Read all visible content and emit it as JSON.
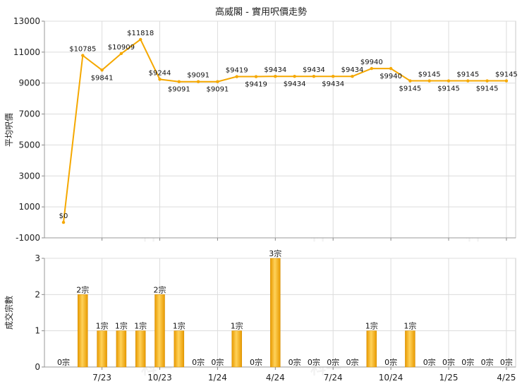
{
  "chart_data": [
    {
      "type": "line",
      "title": "高威閣 - 實用呎價走勢",
      "ylabel": "平均呎價",
      "ylim": [
        -1000,
        13000
      ],
      "yticks": [
        -1000,
        1000,
        3000,
        5000,
        7000,
        9000,
        11000,
        13000
      ],
      "grid": true,
      "x_tick_labels": [
        "7/23",
        "10/23",
        "1/24",
        "4/24",
        "7/24",
        "10/24",
        "1/25",
        "4/25"
      ],
      "x_tick_index": [
        2,
        5,
        8,
        11,
        14,
        17,
        20,
        23
      ],
      "series": [
        {
          "color": "#f5a800",
          "values": [
            0,
            10785,
            9841,
            10909,
            11818,
            9244,
            9091,
            9091,
            9091,
            9419,
            9419,
            9434,
            9434,
            9434,
            9434,
            9434,
            9940,
            9940,
            9145,
            9145,
            9145,
            9145,
            9145,
            9145
          ],
          "labels": [
            "$0",
            "$10785",
            "$9841",
            "$10909",
            "$11818",
            "$9244",
            "$9091",
            "$9091",
            "$9091",
            "$9419",
            "$9419",
            "$9434",
            "$9434",
            "$9434",
            "$9434",
            "$9434",
            "$9940",
            "$9940",
            "$9145",
            "$9145",
            "$9145",
            "$9145",
            "$9145",
            "$9145"
          ],
          "label_pos": [
            "above",
            "above",
            "below",
            "above",
            "above",
            "above",
            "below",
            "above",
            "below",
            "above",
            "below",
            "above",
            "below",
            "above",
            "below",
            "above",
            "above",
            "below",
            "below",
            "above",
            "below",
            "above",
            "below",
            "above"
          ]
        }
      ]
    },
    {
      "type": "bar",
      "ylabel": "成交宗數",
      "ylim": [
        0,
        3
      ],
      "yticks": [
        0,
        1,
        2,
        3
      ],
      "grid": true,
      "x_tick_labels": [
        "7/23",
        "10/23",
        "1/24",
        "4/24",
        "7/24",
        "10/24",
        "1/25",
        "4/25"
      ],
      "x_tick_index": [
        2,
        5,
        8,
        11,
        14,
        17,
        20,
        23
      ],
      "series": [
        {
          "color": "#f5a800",
          "values": [
            0,
            2,
            1,
            1,
            1,
            2,
            1,
            0,
            0,
            1,
            0,
            3,
            0,
            0,
            0,
            0,
            1,
            0,
            1,
            0,
            0,
            0,
            0,
            0
          ],
          "labels": [
            "0宗",
            "2宗",
            "1宗",
            "1宗",
            "1宗",
            "2宗",
            "1宗",
            "0宗",
            "0宗",
            "1宗",
            "0宗",
            "3宗",
            "0宗",
            "0宗",
            "0宗",
            "0宗",
            "1宗",
            "0宗",
            "1宗",
            "0宗",
            "0宗",
            "0宗",
            "0宗",
            "0宗"
          ]
        }
      ]
    }
  ],
  "watermark": "科一"
}
